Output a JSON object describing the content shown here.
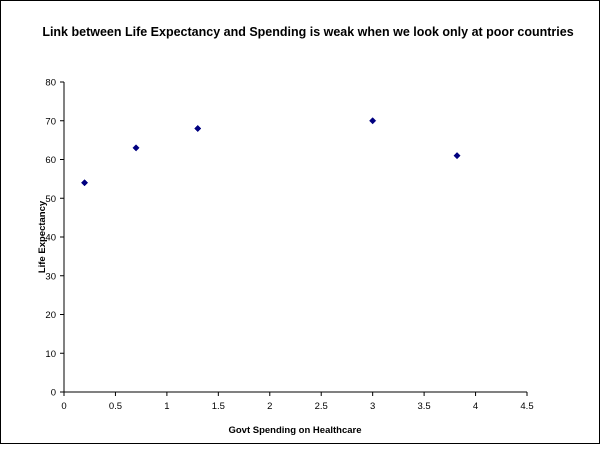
{
  "chart_data": {
    "type": "scatter",
    "title": "Link between Life Expectancy and Spending is weak when we look only at poor countries",
    "xlabel": "Govt Spending on Healthcare",
    "ylabel": "Life Expectancy",
    "xlim": [
      0,
      4.5
    ],
    "ylim": [
      0,
      80
    ],
    "xticks": [
      "0",
      "0.5",
      "1",
      "1.5",
      "2",
      "2.5",
      "3",
      "3.5",
      "4",
      "4.5"
    ],
    "yticks": [
      "0",
      "10",
      "20",
      "30",
      "40",
      "50",
      "60",
      "70",
      "80"
    ],
    "grid": false,
    "legend": "none",
    "marker": "diamond",
    "colors": {
      "marker": "#000080",
      "axis": "#000000",
      "background": "#ffffff",
      "frame": "#000000"
    },
    "points": [
      {
        "x": 0.2,
        "y": 54
      },
      {
        "x": 0.7,
        "y": 63
      },
      {
        "x": 1.3,
        "y": 68
      },
      {
        "x": 3.0,
        "y": 70
      },
      {
        "x": 3.82,
        "y": 61
      }
    ]
  }
}
